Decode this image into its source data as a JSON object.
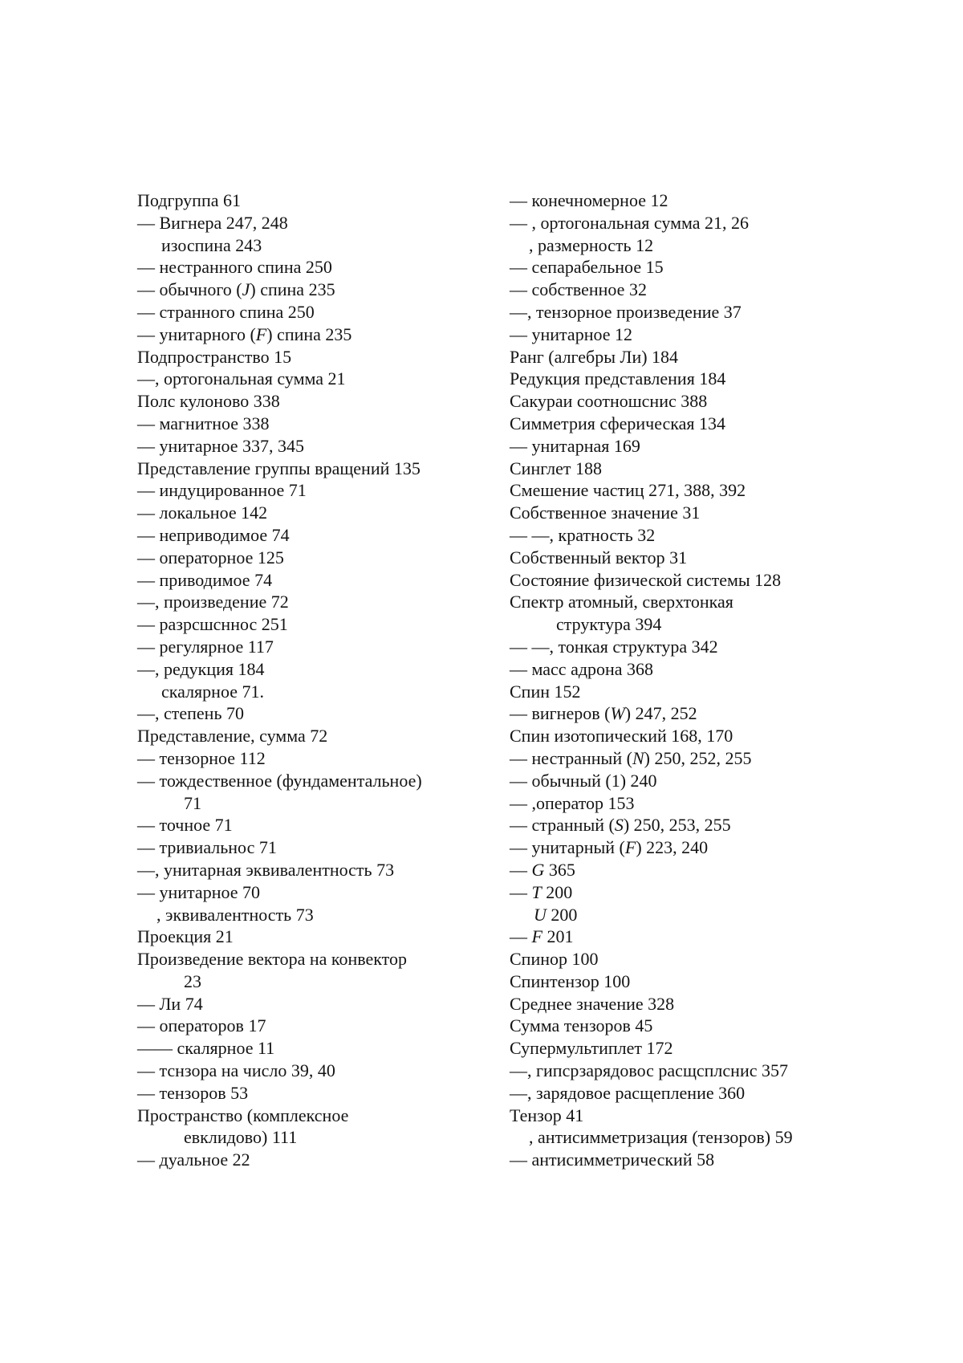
{
  "colors": {
    "text": "#141414",
    "background": "#ffffff"
  },
  "index": {
    "columns": [
      {
        "side": "left",
        "lines": [
          {
            "indent": "flush",
            "text": "Подгруппа 61"
          },
          {
            "indent": "flush",
            "text": "— Вигнера 247, 248"
          },
          {
            "indent": "sub",
            "text": "изоспина 243"
          },
          {
            "indent": "flush",
            "text": "— нестранного спина 250"
          },
          {
            "indent": "flush",
            "text": "— обычного (J) спина 235"
          },
          {
            "indent": "flush",
            "text": "— странного спина 250"
          },
          {
            "indent": "flush",
            "text": "— унитарного (F) спина 235"
          },
          {
            "indent": "flush",
            "text": "Подпространство 15"
          },
          {
            "indent": "flush",
            "text": "—, ортогональная сумма 21"
          },
          {
            "indent": "flush",
            "text": "Полс кулоново 338"
          },
          {
            "indent": "flush",
            "text": "— магнитное 338"
          },
          {
            "indent": "flush",
            "text": "— унитарное 337, 345"
          },
          {
            "indent": "flush",
            "text": "Представление группы вращений 135"
          },
          {
            "indent": "flush",
            "text": "— индуцированное 71"
          },
          {
            "indent": "flush",
            "text": "— локальное 142"
          },
          {
            "indent": "flush",
            "text": "— неприводимое 74"
          },
          {
            "indent": "flush",
            "text": "— операторное 125"
          },
          {
            "indent": "flush",
            "text": "— приводимое 74"
          },
          {
            "indent": "flush",
            "text": "—, произведение 72"
          },
          {
            "indent": "flush",
            "text": "— разрсшсннос 251"
          },
          {
            "indent": "flush",
            "text": "— регулярное 117"
          },
          {
            "indent": "flush",
            "text": "—, редукция 184"
          },
          {
            "indent": "sub",
            "text": "скалярное 71."
          },
          {
            "indent": "flush",
            "text": "—, степень 70"
          },
          {
            "indent": "flush",
            "text": "Представление, сумма 72"
          },
          {
            "indent": "flush",
            "text": "— тензорное 112"
          },
          {
            "indent": "flush",
            "text": "— тождественное (фундаментальное)"
          },
          {
            "indent": "wrap",
            "text": "71"
          },
          {
            "indent": "flush",
            "text": "— точное 71"
          },
          {
            "indent": "flush",
            "text": "— тривиальнос 71"
          },
          {
            "indent": "flush",
            "text": "—, унитарная эквивалентность 73"
          },
          {
            "indent": "flush",
            "text": "— унитарное 70"
          },
          {
            "indent": "comma",
            "text": ", эквивалентность 73"
          },
          {
            "indent": "flush",
            "text": "Проекция 21"
          },
          {
            "indent": "flush",
            "text": "Произведение вектора на конвектор"
          },
          {
            "indent": "wrap",
            "text": "23"
          },
          {
            "indent": "flush",
            "text": "— Ли 74"
          },
          {
            "indent": "flush",
            "text": "— операторов 17"
          },
          {
            "indent": "flush",
            "text": "—— скалярное 11"
          },
          {
            "indent": "flush",
            "text": "— тснзора на число 39, 40"
          },
          {
            "indent": "flush",
            "text": "— тензоров 53"
          },
          {
            "indent": "flush",
            "text": "Пространство (комплексное"
          },
          {
            "indent": "wrap",
            "text": "евклидово) 111"
          },
          {
            "indent": "flush",
            "text": "— дуальное 22"
          }
        ]
      },
      {
        "side": "right",
        "lines": [
          {
            "indent": "flush",
            "text": "— конечномерное 12"
          },
          {
            "indent": "flush",
            "text": "— , ортогональная сумма 21, 26"
          },
          {
            "indent": "comma",
            "text": ", размерность 12"
          },
          {
            "indent": "flush",
            "text": "— сепарабельное 15"
          },
          {
            "indent": "flush",
            "text": "— собственное 32"
          },
          {
            "indent": "flush",
            "text": "—, тензорное произведение 37"
          },
          {
            "indent": "flush",
            "text": "— унитарное 12"
          },
          {
            "indent": "flush",
            "text": "Ранг (алгебры Ли) 184"
          },
          {
            "indent": "flush",
            "text": "Редукция представления 184"
          },
          {
            "indent": "flush",
            "text": "Сакураи соотношснис 388"
          },
          {
            "indent": "flush",
            "text": "Симметрия сферическая 134"
          },
          {
            "indent": "flush",
            "text": "— унитарная 169"
          },
          {
            "indent": "flush",
            "text": "Синглет 188"
          },
          {
            "indent": "flush",
            "text": "Смешение частиц 271, 388, 392"
          },
          {
            "indent": "flush",
            "text": "Собственное значение 31"
          },
          {
            "indent": "flush",
            "text": "— —, кратность 32"
          },
          {
            "indent": "flush",
            "text": "Собственный вектор 31"
          },
          {
            "indent": "flush",
            "text": "Состояние физической системы 128"
          },
          {
            "indent": "flush",
            "text": "Спектр атомный, сверхтонкая"
          },
          {
            "indent": "wrap",
            "text": "структура 394"
          },
          {
            "indent": "flush",
            "text": "— —, тонкая структура 342"
          },
          {
            "indent": "flush",
            "text": "— масс адрона 368"
          },
          {
            "indent": "flush",
            "text": "Спин 152"
          },
          {
            "indent": "flush",
            "text": "— вигнеров (W) 247, 252"
          },
          {
            "indent": "flush",
            "text": "Спин изотопический 168, 170"
          },
          {
            "indent": "flush",
            "text": "— нестранный (N) 250, 252, 255"
          },
          {
            "indent": "flush",
            "text": "— обычный (1) 240"
          },
          {
            "indent": "flush",
            "text": "— ,оператор 153"
          },
          {
            "indent": "flush",
            "text": "— странный (S) 250, 253, 255"
          },
          {
            "indent": "flush",
            "text": "— унитарный (F) 223, 240"
          },
          {
            "indent": "flush",
            "text": "— G 365"
          },
          {
            "indent": "flush",
            "text": "— T 200"
          },
          {
            "indent": "sub",
            "text": "U 200"
          },
          {
            "indent": "flush",
            "text": "— F 201"
          },
          {
            "indent": "flush",
            "text": "Спинор 100"
          },
          {
            "indent": "flush",
            "text": "Спинтензор 100"
          },
          {
            "indent": "flush",
            "text": "Среднее значение 328"
          },
          {
            "indent": "flush",
            "text": "Сумма тензоров 45"
          },
          {
            "indent": "flush",
            "text": "Супермультиплет 172"
          },
          {
            "indent": "flush",
            "text": "—, гипсрзарядовос расщсплснис 357"
          },
          {
            "indent": "flush",
            "text": "—, зарядовое расщепление 360"
          },
          {
            "indent": "flush",
            "text": "Тензор 41"
          },
          {
            "indent": "comma",
            "text": ", антисимметризация (тензоров) 59"
          },
          {
            "indent": "flush",
            "text": "— антисимметрический 58"
          }
        ]
      }
    ]
  }
}
